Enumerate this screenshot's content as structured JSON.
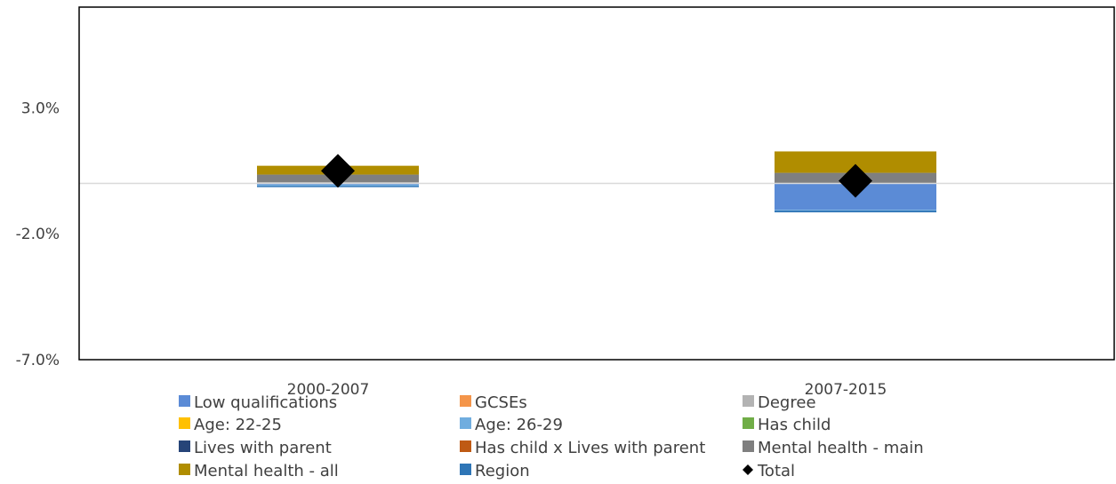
{
  "chart_data": {
    "type": "bar",
    "stacked": true,
    "title": "",
    "xlabel": "",
    "ylabel": "",
    "ylim": [
      -7.0,
      7.0
    ],
    "y_ticks": [
      3.0,
      -2.0,
      -7.0
    ],
    "y_tick_labels": [
      "3.0%",
      "-2.0%",
      "-7.0%"
    ],
    "grid": false,
    "legend_position": "bottom",
    "categories": [
      "2000-2007",
      "2007-2015"
    ],
    "series": [
      {
        "name": "Low qualifications",
        "color": "#5B8BD6",
        "values": [
          -0.05,
          -1.05
        ]
      },
      {
        "name": "GCSEs",
        "color": "#F4954A",
        "values": [
          0.0,
          0.0
        ]
      },
      {
        "name": "Degree",
        "color": "#B3B3B3",
        "values": [
          0.05,
          0.0
        ]
      },
      {
        "name": "Age: 22-25",
        "color": "#FFC000",
        "values": [
          0.0,
          0.0
        ]
      },
      {
        "name": "Age: 26-29",
        "color": "#70ADDF",
        "values": [
          -0.05,
          -0.03
        ]
      },
      {
        "name": "Has child",
        "color": "#70AD47",
        "values": [
          0.0,
          0.0
        ]
      },
      {
        "name": "Lives with parent",
        "color": "#264478",
        "values": [
          0.0,
          0.0
        ]
      },
      {
        "name": "Has child x Lives with parent",
        "color": "#BF5A14",
        "values": [
          0.0,
          0.0
        ]
      },
      {
        "name": "Mental health - main",
        "color": "#7F7F7F",
        "values": [
          0.3,
          0.42
        ]
      },
      {
        "name": "Mental health - all",
        "color": "#B08D00",
        "values": [
          0.35,
          0.85
        ]
      },
      {
        "name": "Region",
        "color": "#2E75B6",
        "values": [
          -0.05,
          -0.07
        ]
      }
    ],
    "total": {
      "name": "Total",
      "marker": "diamond",
      "color": "#000000",
      "values": [
        0.5,
        0.1
      ]
    }
  }
}
